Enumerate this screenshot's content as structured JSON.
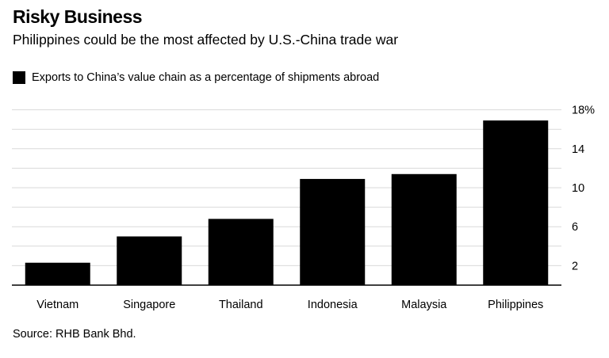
{
  "chart_data": {
    "type": "bar",
    "title": "Risky Business",
    "subtitle": "Philippines could be the most affected by U.S.-China trade war",
    "source": "Source: RHB Bank Bhd.",
    "series": [
      {
        "name": "Exports to China’s value chain as a percentage of shipments abroad",
        "color": "#000000",
        "values": [
          2.3,
          5.0,
          6.8,
          10.9,
          11.4,
          16.9
        ]
      }
    ],
    "categories": [
      "Vietnam",
      "Singapore",
      "Thailand",
      "Indonesia",
      "Malaysia",
      "Philippines"
    ],
    "yticks": [
      {
        "value": 2,
        "label": "2"
      },
      {
        "value": 6,
        "label": "6"
      },
      {
        "value": 10,
        "label": "10"
      },
      {
        "value": 14,
        "label": "14"
      },
      {
        "value": 18,
        "label": "18%"
      }
    ],
    "ylim": [
      0,
      18
    ],
    "y_axis_position": "right",
    "grid": true,
    "legend_position": "top-left"
  }
}
